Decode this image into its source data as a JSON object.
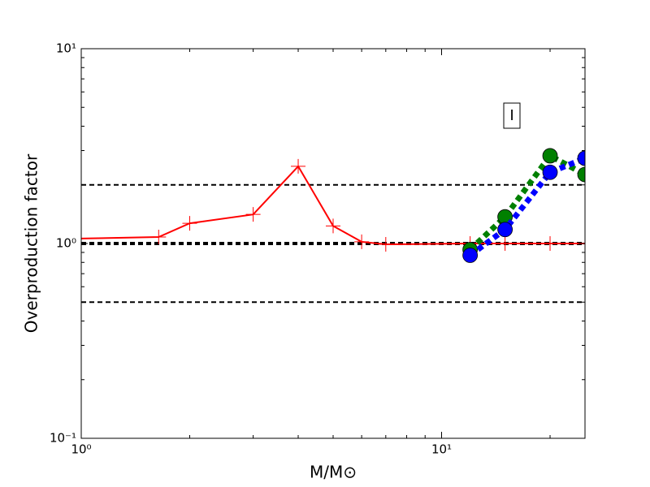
{
  "chart_data": {
    "type": "line",
    "xlabel": "M/M⊙",
    "ylabel": "Overproduction factor",
    "annotation": "I",
    "xscale": "log",
    "yscale": "log",
    "xlim": [
      1,
      25
    ],
    "ylim": [
      0.1,
      10
    ],
    "xticks": [
      {
        "value": 1,
        "label": "10⁰"
      },
      {
        "value": 10,
        "label": "10¹"
      }
    ],
    "yticks": [
      {
        "value": 0.1,
        "label": "10⁻¹"
      },
      {
        "value": 1,
        "label": "10⁰"
      },
      {
        "value": 10,
        "label": "10¹"
      }
    ],
    "hlines": [
      2,
      1,
      0.5
    ],
    "series": [
      {
        "color": "#ff0000",
        "style": "solid",
        "marker": "plus",
        "x": [
          1,
          1.64,
          2,
          3,
          4,
          5,
          6,
          7,
          12,
          15,
          20,
          25
        ],
        "values": [
          1.06,
          1.08,
          1.27,
          1.41,
          2.49,
          1.23,
          1.02,
          0.99,
          1.0,
          1.0,
          1.0,
          1.0
        ]
      },
      {
        "color": "#008000",
        "style": "dotted",
        "marker": "circle",
        "x": [
          12,
          15,
          20,
          25
        ],
        "values": [
          0.93,
          1.37,
          2.82,
          2.26
        ]
      },
      {
        "color": "#0000ff",
        "style": "dotted",
        "marker": "circle",
        "x": [
          12,
          15,
          20,
          25
        ],
        "values": [
          0.87,
          1.18,
          2.32,
          2.74
        ]
      }
    ]
  }
}
